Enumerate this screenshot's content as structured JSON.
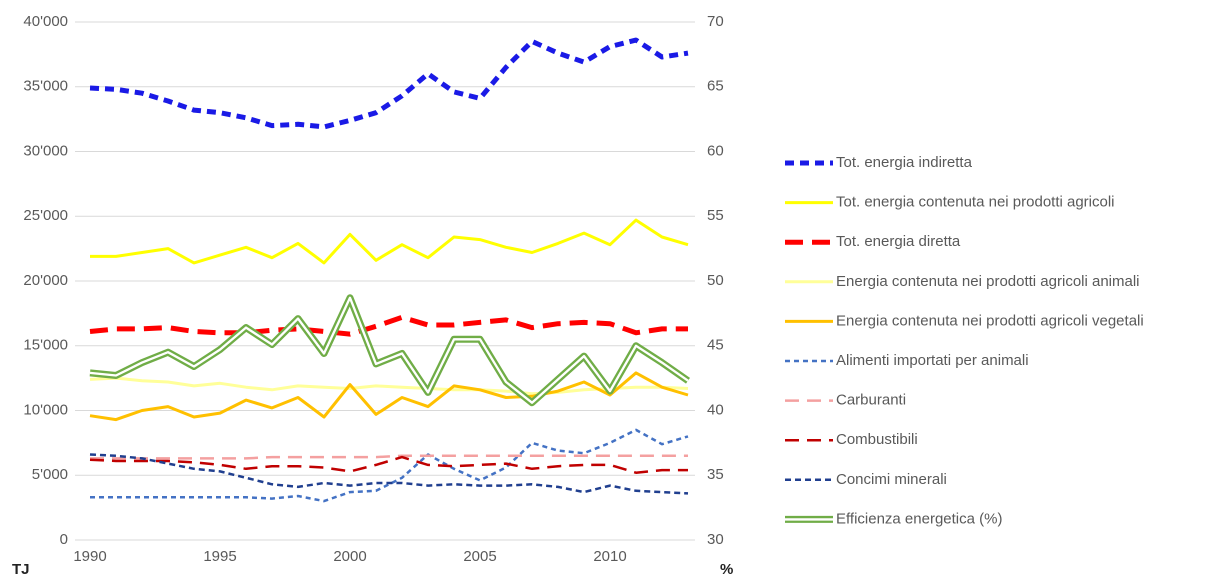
{
  "chart_data": {
    "type": "line",
    "x": [
      1990,
      1991,
      1992,
      1993,
      1994,
      1995,
      1996,
      1997,
      1998,
      1999,
      2000,
      2001,
      2002,
      2003,
      2004,
      2005,
      2006,
      2007,
      2008,
      2009,
      2010,
      2011,
      2012,
      2013
    ],
    "xlim": [
      1990,
      2013
    ],
    "xticks": [
      1990,
      1995,
      2000,
      2005,
      2010
    ],
    "ylim": [
      0,
      40000
    ],
    "yticks": [
      0,
      {
        "value": 5000,
        "label": "5'000"
      },
      {
        "value": 10000,
        "label": "10'000"
      },
      {
        "value": 15000,
        "label": "15'000"
      },
      {
        "value": 20000,
        "label": "20'000"
      },
      {
        "value": 25000,
        "label": "25'000"
      },
      {
        "value": 30000,
        "label": "30'000"
      },
      {
        "value": 35000,
        "label": "35'000"
      },
      {
        "value": 40000,
        "label": "40'000"
      }
    ],
    "y2lim": [
      30,
      70
    ],
    "y2ticks": [
      30,
      35,
      40,
      45,
      50,
      55,
      60,
      65,
      70
    ],
    "ylabel": "TJ",
    "y2label": "%",
    "series": [
      {
        "name": "Tot. energia indiretta",
        "color": "#1a1ae6",
        "width": 5,
        "dash": [
          9,
          6
        ],
        "values": [
          34900,
          34800,
          34500,
          33900,
          33200,
          33000,
          32600,
          32000,
          32100,
          31900,
          32400,
          33000,
          34300,
          36000,
          34600,
          34100,
          36500,
          38500,
          37600,
          36900,
          38100,
          38600,
          37300,
          37600
        ]
      },
      {
        "name": "Tot. energia contenuta nei prodotti agricoli",
        "color": "#ffff00",
        "width": 3,
        "dash": [],
        "values": [
          21900,
          21900,
          22200,
          22500,
          21400,
          22000,
          22600,
          21800,
          22900,
          21400,
          23600,
          21600,
          22800,
          21800,
          23400,
          23200,
          22600,
          22200,
          22900,
          23700,
          22800,
          24700,
          23400,
          22800
        ]
      },
      {
        "name": "Tot. energia diretta",
        "color": "#ff0000",
        "width": 5,
        "dash": [
          18,
          9
        ],
        "values": [
          16100,
          16300,
          16300,
          16400,
          16100,
          16000,
          16000,
          16200,
          16300,
          16100,
          15900,
          16500,
          17200,
          16600,
          16600,
          16800,
          17000,
          16400,
          16700,
          16800,
          16700,
          16000,
          16300,
          16300
        ]
      },
      {
        "name": "Energia contenuta nei prodotti agricoli animali",
        "color": "#ffff99",
        "width": 3,
        "dash": [],
        "values": [
          12400,
          12500,
          12300,
          12200,
          11900,
          12100,
          11800,
          11600,
          11900,
          11800,
          11700,
          11900,
          11800,
          11700,
          11600,
          11600,
          11500,
          11300,
          11400,
          11600,
          11700,
          11800,
          11800,
          11700
        ]
      },
      {
        "name": "Energia contenuta nei prodotti agricoli vegetali",
        "color": "#ffc000",
        "width": 3,
        "dash": [],
        "values": [
          9600,
          9300,
          10000,
          10300,
          9500,
          9800,
          10800,
          10200,
          11000,
          9500,
          12000,
          9700,
          11000,
          10300,
          11900,
          11600,
          11000,
          11100,
          11500,
          12200,
          11200,
          12900,
          11800,
          11200
        ]
      },
      {
        "name": "Alimenti importati per animali",
        "color": "#4472c4",
        "width": 2.5,
        "dash": [
          5,
          4
        ],
        "values": [
          3300,
          3300,
          3300,
          3300,
          3300,
          3300,
          3300,
          3200,
          3400,
          3000,
          3700,
          3800,
          4800,
          6600,
          5500,
          4600,
          5600,
          7500,
          6900,
          6700,
          7500,
          8500,
          7400,
          8000
        ]
      },
      {
        "name": "Carburanti",
        "color": "#f4a0a0",
        "width": 2.5,
        "dash": [
          14,
          8
        ],
        "values": [
          6300,
          6300,
          6300,
          6300,
          6300,
          6300,
          6300,
          6400,
          6400,
          6400,
          6400,
          6400,
          6500,
          6500,
          6500,
          6500,
          6500,
          6500,
          6500,
          6500,
          6500,
          6500,
          6500,
          6500
        ]
      },
      {
        "name": "Combustibili",
        "color": "#c00000",
        "width": 2.5,
        "dash": [
          14,
          8
        ],
        "values": [
          6200,
          6100,
          6100,
          6100,
          6000,
          5800,
          5500,
          5700,
          5700,
          5600,
          5300,
          5800,
          6400,
          5800,
          5700,
          5800,
          5900,
          5500,
          5700,
          5800,
          5800,
          5200,
          5400,
          5400
        ]
      },
      {
        "name": "Concimi minerali",
        "color": "#203f8f",
        "width": 2.5,
        "dash": [
          6,
          4
        ],
        "values": [
          6600,
          6500,
          6300,
          5900,
          5500,
          5300,
          4800,
          4300,
          4100,
          4400,
          4200,
          4400,
          4400,
          4200,
          4300,
          4200,
          4200,
          4300,
          4100,
          3700,
          4200,
          3800,
          3700,
          3600
        ]
      },
      {
        "name": "Efficienza energetica (%)",
        "color": "#70ad47",
        "width": 7,
        "dash": [],
        "style": "double",
        "axis": "y2",
        "values": [
          42.9,
          42.7,
          43.7,
          44.5,
          43.4,
          44.7,
          46.4,
          45.1,
          47.1,
          44.4,
          48.7,
          43.6,
          44.4,
          41.4,
          45.5,
          45.5,
          42.2,
          40.6,
          42.4,
          44.2,
          41.5,
          45.0,
          43.7,
          42.3
        ]
      }
    ]
  }
}
